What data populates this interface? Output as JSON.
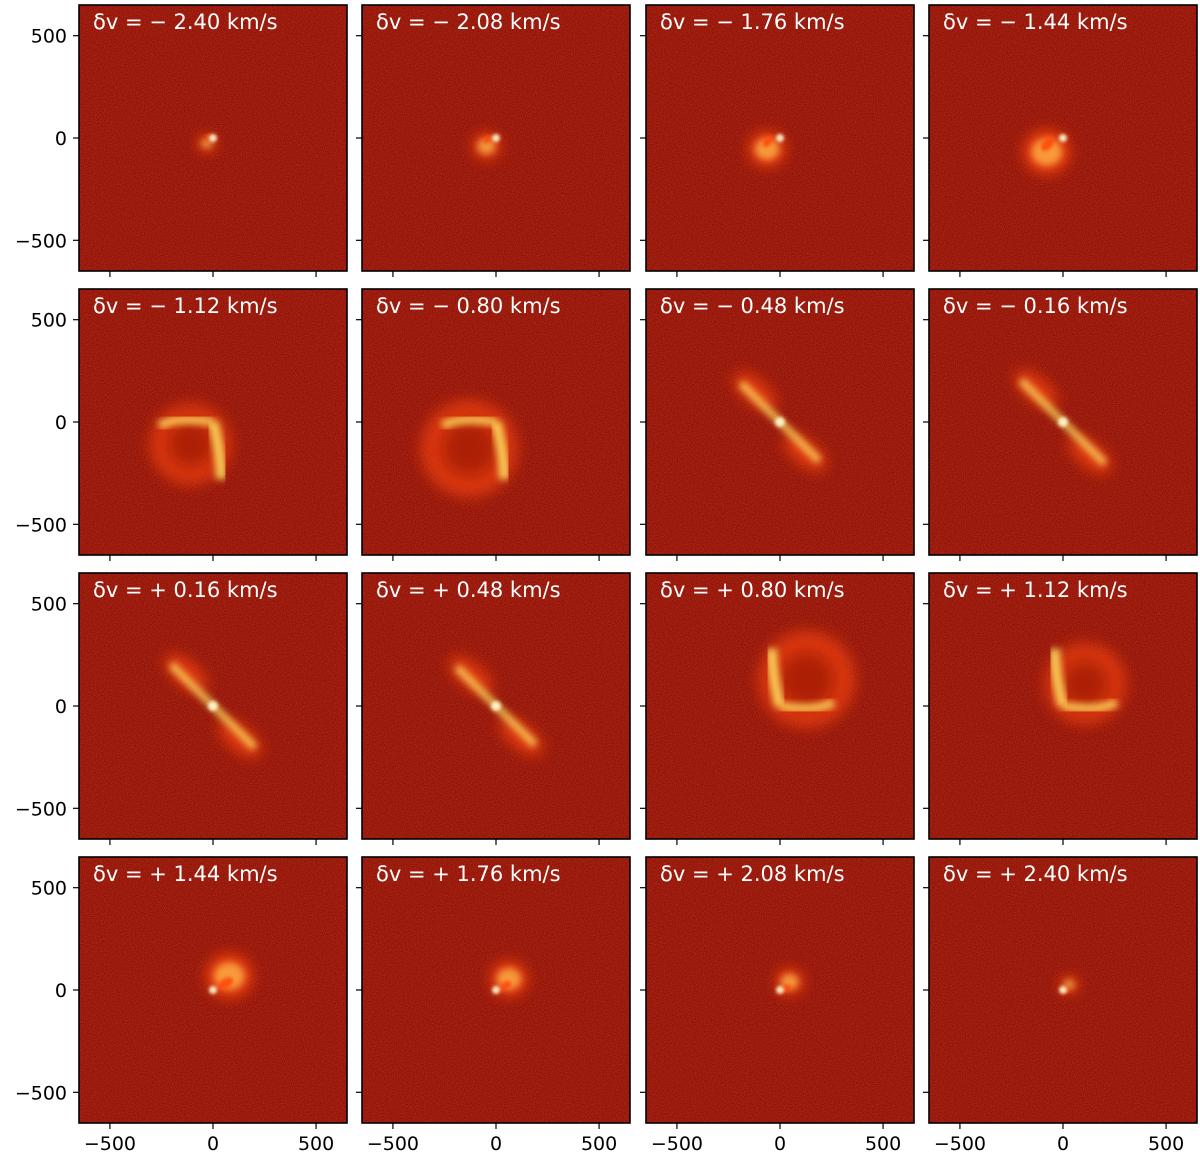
{
  "chart_data": {
    "type": "heatmap",
    "title": "",
    "xlabel": "",
    "ylabel": "",
    "grid": false,
    "rows": 4,
    "cols": 4,
    "xlim": [
      -650,
      650
    ],
    "ylim": [
      -650,
      650
    ],
    "x_ticks": [
      -500,
      0,
      500
    ],
    "y_ticks": [
      500,
      0,
      -500
    ],
    "x_tick_labels": [
      "−500",
      "0",
      "500"
    ],
    "y_tick_labels": [
      "500",
      "0",
      "−500"
    ],
    "colormap": "hot",
    "colors": {
      "background": "#8c0d05",
      "low": "#b01505",
      "mid": "#ff4810",
      "high": "#ffe060",
      "peak": "#fffbd0",
      "label": "#ffffff",
      "frame": "#000000"
    },
    "panels": [
      {
        "label": "δv = − 2.40 km/s",
        "velocity_km_s": -2.4
      },
      {
        "label": "δv = − 2.08 km/s",
        "velocity_km_s": -2.08
      },
      {
        "label": "δv = − 1.76 km/s",
        "velocity_km_s": -1.76
      },
      {
        "label": "δv = − 1.44 km/s",
        "velocity_km_s": -1.44
      },
      {
        "label": "δv = − 1.12 km/s",
        "velocity_km_s": -1.12
      },
      {
        "label": "δv = − 0.80 km/s",
        "velocity_km_s": -0.8
      },
      {
        "label": "δv = − 0.48 km/s",
        "velocity_km_s": -0.48
      },
      {
        "label": "δv = − 0.16 km/s",
        "velocity_km_s": -0.16
      },
      {
        "label": "δv = + 0.16 km/s",
        "velocity_km_s": 0.16
      },
      {
        "label": "δv = + 0.48 km/s",
        "velocity_km_s": 0.48
      },
      {
        "label": "δv = + 0.80 km/s",
        "velocity_km_s": 0.8
      },
      {
        "label": "δv = + 1.12 km/s",
        "velocity_km_s": 1.12
      },
      {
        "label": "δv = + 1.44 km/s",
        "velocity_km_s": 1.44
      },
      {
        "label": "δv = + 1.76 km/s",
        "velocity_km_s": 1.76
      },
      {
        "label": "δv = + 2.08 km/s",
        "velocity_km_s": 2.08
      },
      {
        "label": "δv = + 2.40 km/s",
        "velocity_km_s": 2.4
      }
    ]
  }
}
